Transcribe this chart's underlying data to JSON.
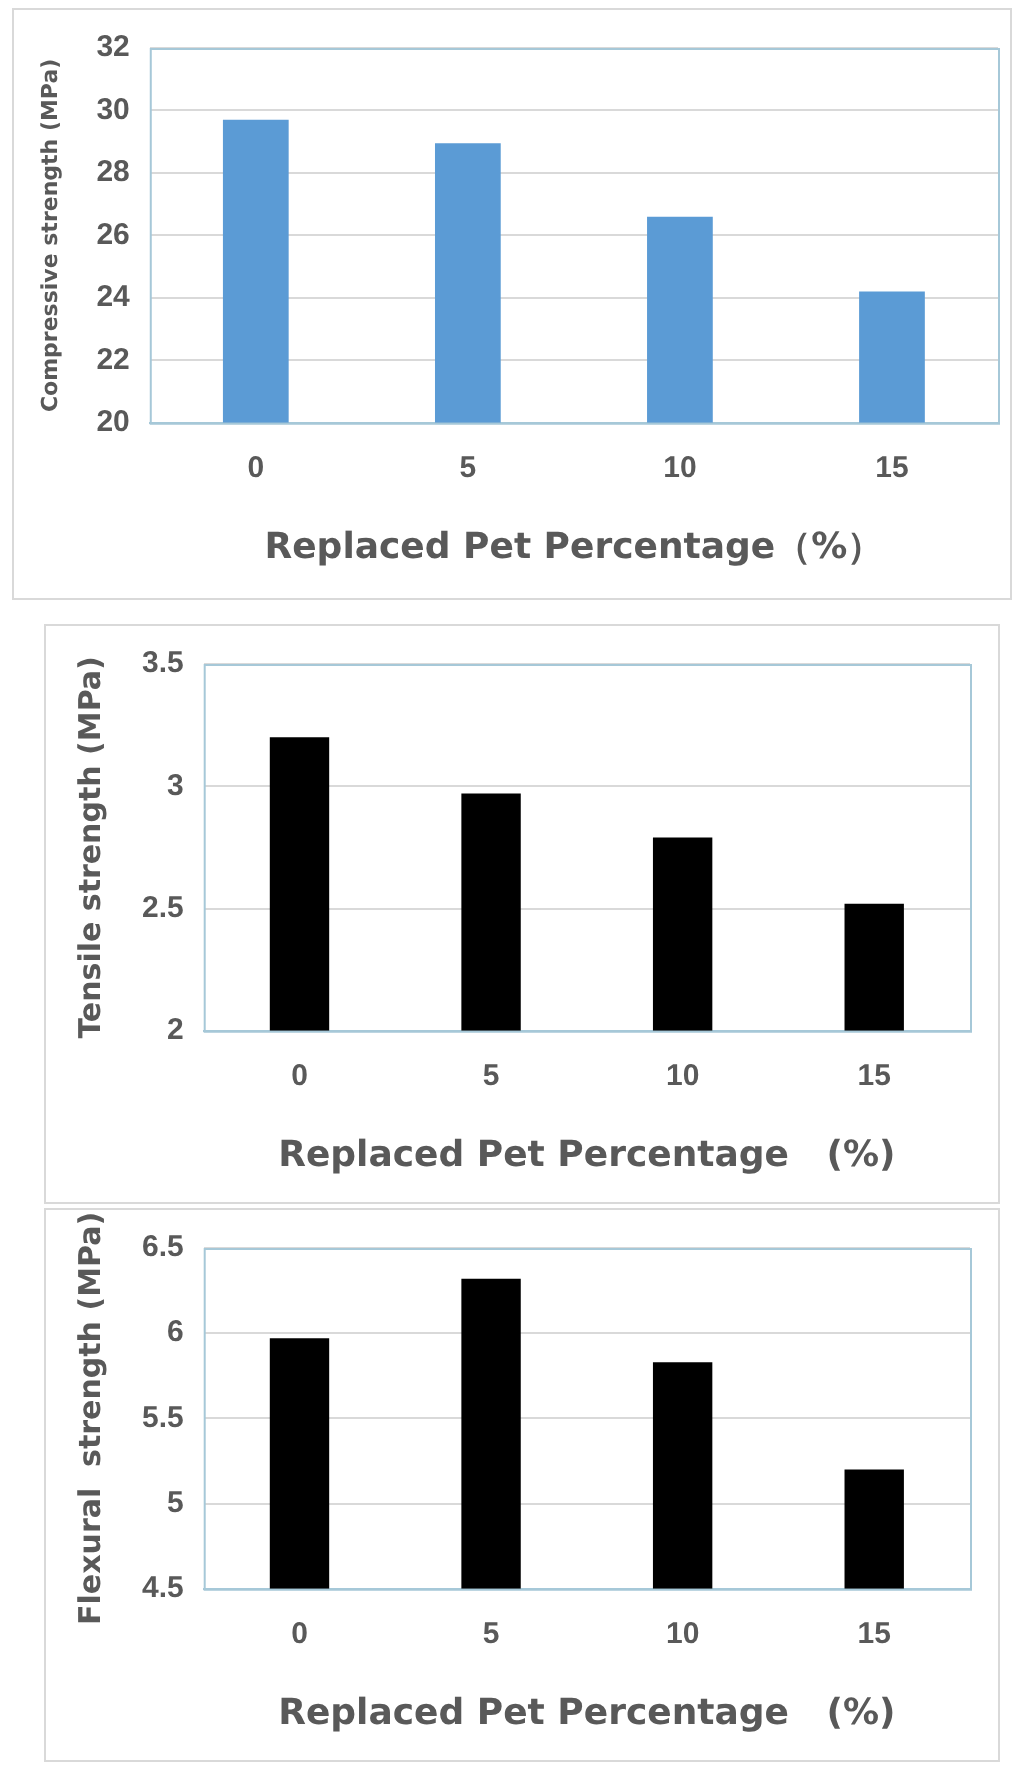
{
  "chart_data": [
    {
      "type": "bar",
      "categories": [
        "0",
        "5",
        "10",
        "15"
      ],
      "values": [
        29.7,
        28.95,
        26.6,
        24.2
      ],
      "color": "#5b9bd5",
      "xlabel": "Replaced Pet Percentage（%）",
      "ylabel": "Compressive strength (MPa)",
      "ylim": [
        20,
        32
      ],
      "yticks": [
        20,
        22,
        24,
        26,
        28,
        30,
        32
      ],
      "grid": "y",
      "legend": false
    },
    {
      "type": "bar",
      "categories": [
        "0",
        "5",
        "10",
        "15"
      ],
      "values": [
        3.2,
        2.97,
        2.79,
        2.52
      ],
      "color": "#000000",
      "xlabel": "Replaced Pet Percentage   (%)",
      "ylabel": "Tensile strength (MPa)",
      "ylim": [
        2,
        3.5
      ],
      "yticks": [
        2,
        2.5,
        3,
        3.5
      ],
      "grid": "y",
      "legend": false
    },
    {
      "type": "bar",
      "categories": [
        "0",
        "5",
        "10",
        "15"
      ],
      "values": [
        5.97,
        6.32,
        5.83,
        5.2
      ],
      "color": "#000000",
      "xlabel": "Replaced Pet Percentage   (%)",
      "ylabel": "Flexural  strength (MPa)",
      "ylim": [
        4.5,
        6.5
      ],
      "yticks": [
        4.5,
        5,
        5.5,
        6,
        6.5
      ],
      "grid": "y",
      "legend": false
    }
  ]
}
